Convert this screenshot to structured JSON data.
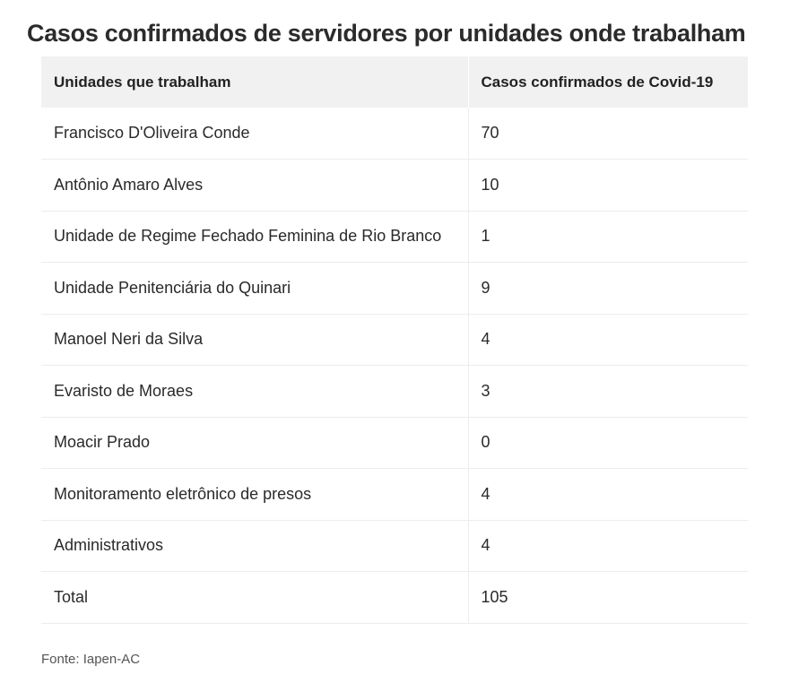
{
  "title": "Casos confirmados de servidores por unidades onde trabalham",
  "table": {
    "headers": [
      "Unidades que trabalham",
      "Casos confirmados de Covid-19"
    ],
    "rows": [
      {
        "unit": "Francisco D'Oliveira Conde",
        "cases": "70"
      },
      {
        "unit": "Antônio Amaro Alves",
        "cases": "10"
      },
      {
        "unit": "Unidade de Regime Fechado Feminina de Rio Branco",
        "cases": "1"
      },
      {
        "unit": "Unidade Penitenciária do Quinari",
        "cases": "9"
      },
      {
        "unit": "Manoel Neri da Silva",
        "cases": "4"
      },
      {
        "unit": "Evaristo de Moraes",
        "cases": "3"
      },
      {
        "unit": "Moacir Prado",
        "cases": "0"
      },
      {
        "unit": "Monitoramento eletrônico de presos",
        "cases": "4"
      },
      {
        "unit": "Administrativos",
        "cases": "4"
      },
      {
        "unit": "Total",
        "cases": "105"
      }
    ]
  },
  "source": "Fonte: Iapen-AC"
}
